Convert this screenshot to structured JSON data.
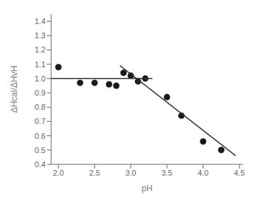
{
  "chart_data": {
    "type": "scatter",
    "xlabel": "pH",
    "ylabel": "ΔHcal/ΔHvH",
    "xlim": [
      1.9,
      4.55
    ],
    "ylim": [
      0.4,
      1.45
    ],
    "xticks": [
      {
        "value": 2.0,
        "label": "2.0"
      },
      2.5,
      {
        "value": 3.0,
        "label": "3.0"
      },
      3.5,
      {
        "value": 4.0,
        "label": "4.0"
      },
      4.5
    ],
    "yticks": [
      0.4,
      0.5,
      0.6,
      0.7,
      0.8,
      0.9,
      {
        "value": 1.0,
        "label": "1.0"
      },
      1.1,
      1.2,
      1.3,
      1.4
    ],
    "series": [
      {
        "type": "scatter",
        "color": "#1a1a1a",
        "x": [
          2.0,
          2.3,
          2.5,
          2.7,
          2.8,
          2.9,
          3.0,
          3.1,
          3.2,
          3.5,
          3.7,
          4.0,
          4.25
        ],
        "values": [
          1.08,
          0.97,
          0.97,
          0.96,
          0.95,
          1.04,
          1.02,
          0.98,
          1.0,
          0.87,
          0.74,
          0.56,
          0.5
        ]
      },
      {
        "type": "line",
        "color": "#333333",
        "x": [
          1.9,
          3.3
        ],
        "values": [
          1.0,
          1.0
        ]
      },
      {
        "type": "line",
        "color": "#333333",
        "x": [
          2.85,
          4.45
        ],
        "values": [
          1.09,
          0.46
        ]
      }
    ]
  }
}
